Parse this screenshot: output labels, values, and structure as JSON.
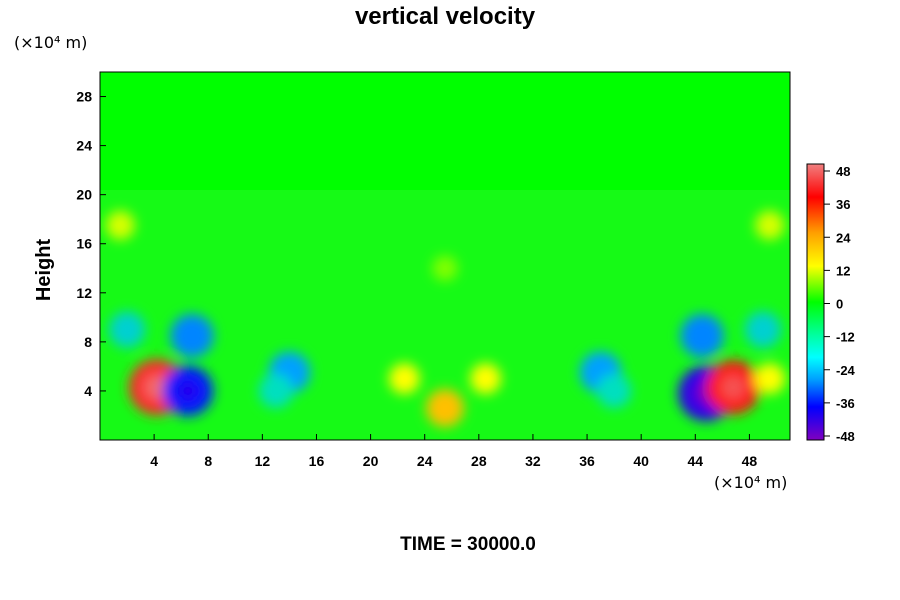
{
  "chart_data": {
    "type": "heatmap",
    "title": "vertical velocity",
    "ylabel": "Height",
    "x_unit_label": "(×10⁴ m)",
    "y_unit_label": "(×10⁴ m)",
    "footer": "TIME = 30000.0",
    "xlim": [
      0,
      51
    ],
    "ylim": [
      0,
      30
    ],
    "x_ticks": [
      "4",
      "8",
      "12",
      "16",
      "20",
      "24",
      "28",
      "32",
      "36",
      "40",
      "44",
      "48"
    ],
    "y_ticks": [
      "4",
      "8",
      "12",
      "16",
      "20",
      "24",
      "28"
    ],
    "colorbar": {
      "range": [
        -48,
        48
      ],
      "ticks": [
        "48",
        "36",
        "24",
        "12",
        "0",
        "-12",
        "-24",
        "-36",
        "-48"
      ]
    },
    "features": [
      {
        "x": 4.2,
        "y": 4.3,
        "value": 40
      },
      {
        "x": 6.5,
        "y": 4.0,
        "value": -34
      },
      {
        "x": 6.8,
        "y": 8.5,
        "value": -26
      },
      {
        "x": 2.0,
        "y": 9.0,
        "value": -18
      },
      {
        "x": 14.0,
        "y": 5.5,
        "value": -24
      },
      {
        "x": 13.0,
        "y": 4.0,
        "value": -16
      },
      {
        "x": 25.5,
        "y": 2.6,
        "value": 20
      },
      {
        "x": 22.5,
        "y": 5.0,
        "value": 12
      },
      {
        "x": 28.5,
        "y": 5.0,
        "value": 12
      },
      {
        "x": 37.0,
        "y": 5.5,
        "value": -24
      },
      {
        "x": 38.0,
        "y": 4.0,
        "value": -16
      },
      {
        "x": 44.8,
        "y": 3.8,
        "value": -40
      },
      {
        "x": 44.5,
        "y": 8.5,
        "value": -26
      },
      {
        "x": 46.8,
        "y": 4.3,
        "value": 38
      },
      {
        "x": 49.0,
        "y": 9.0,
        "value": -18
      },
      {
        "x": 49.5,
        "y": 5.0,
        "value": 12
      },
      {
        "x": 1.5,
        "y": 17.5,
        "value": 10
      },
      {
        "x": 49.5,
        "y": 17.5,
        "value": 10
      },
      {
        "x": 25.5,
        "y": 14.0,
        "value": 6
      }
    ]
  }
}
